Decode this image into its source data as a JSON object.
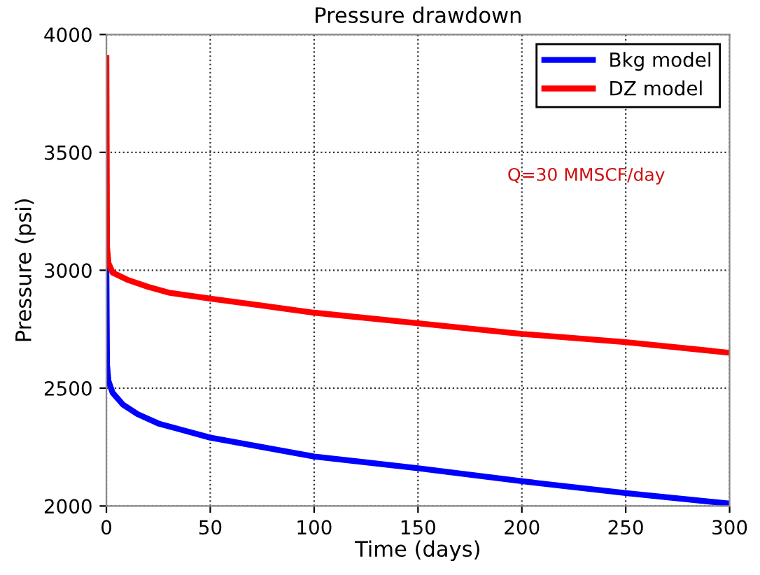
{
  "chart_data": {
    "type": "line",
    "title": "Pressure drawdown",
    "xlabel": "Time (days)",
    "ylabel": "Pressure (psi)",
    "xlim": [
      0,
      300
    ],
    "ylim": [
      2000,
      4000
    ],
    "xticks": [
      0,
      50,
      100,
      150,
      200,
      250,
      300
    ],
    "yticks": [
      2000,
      2500,
      3000,
      3500,
      4000
    ],
    "grid": true,
    "legend": "top right",
    "line_style": "solid",
    "marker": "none",
    "annotations": [
      "Q=30 MMSCF/day"
    ],
    "series": [
      {
        "name": "Bkg model",
        "color": "#0000ff",
        "x": [
          0,
          0.3,
          1,
          3,
          8,
          15,
          25,
          50,
          75,
          100,
          150,
          200,
          250,
          300
        ],
        "values": [
          3000,
          2600,
          2530,
          2480,
          2430,
          2390,
          2350,
          2290,
          2250,
          2210,
          2160,
          2105,
          2055,
          2010
        ]
      },
      {
        "name": "DZ model",
        "color": "#ff0000",
        "x": [
          0,
          0.3,
          1,
          3,
          10,
          20,
          30,
          50,
          75,
          100,
          150,
          200,
          250,
          300
        ],
        "values": [
          3900,
          3100,
          3030,
          2990,
          2960,
          2930,
          2905,
          2880,
          2850,
          2820,
          2775,
          2730,
          2695,
          2650
        ]
      }
    ]
  }
}
